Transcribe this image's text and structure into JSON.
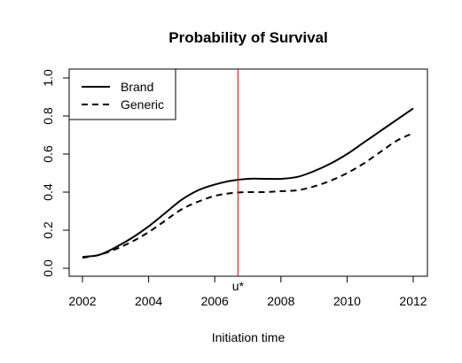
{
  "chart_data": {
    "type": "line",
    "title": "Probability of Survival",
    "xlabel": "Initiation time",
    "ylabel": "",
    "xlim": [
      2002,
      2012
    ],
    "ylim": [
      0.0,
      1.0
    ],
    "xticks": [
      "2002",
      "2004",
      "2006",
      "2008",
      "2010",
      "2012"
    ],
    "yticks": [
      "0.0",
      "0.2",
      "0.4",
      "0.6",
      "0.8",
      "1.0"
    ],
    "grid": false,
    "legend": {
      "position": "top-left"
    },
    "series": [
      {
        "name": "Brand",
        "style": "solid",
        "color": "#000000",
        "x": [
          2002,
          2002.5,
          2003,
          2003.5,
          2004,
          2004.5,
          2005,
          2005.5,
          2006,
          2006.5,
          2007,
          2007.5,
          2008,
          2008.5,
          2009,
          2009.5,
          2010,
          2010.5,
          2011,
          2011.5,
          2012
        ],
        "values": [
          0.06,
          0.07,
          0.11,
          0.16,
          0.22,
          0.29,
          0.36,
          0.41,
          0.44,
          0.46,
          0.47,
          0.47,
          0.47,
          0.48,
          0.51,
          0.55,
          0.6,
          0.66,
          0.72,
          0.78,
          0.84
        ]
      },
      {
        "name": "Generic",
        "style": "dashed",
        "color": "#000000",
        "x": [
          2002,
          2002.5,
          2003,
          2003.5,
          2004,
          2004.5,
          2005,
          2005.5,
          2006,
          2006.5,
          2007,
          2007.5,
          2008,
          2008.5,
          2009,
          2009.5,
          2010,
          2010.5,
          2011,
          2011.5,
          2012
        ],
        "values": [
          0.055,
          0.07,
          0.1,
          0.14,
          0.19,
          0.25,
          0.31,
          0.35,
          0.38,
          0.395,
          0.4,
          0.4,
          0.405,
          0.41,
          0.43,
          0.46,
          0.5,
          0.55,
          0.61,
          0.67,
          0.71
        ]
      }
    ],
    "annotations": [
      {
        "type": "vline",
        "x": 2006.7,
        "label": "u*",
        "color": "#cc0000"
      }
    ]
  }
}
